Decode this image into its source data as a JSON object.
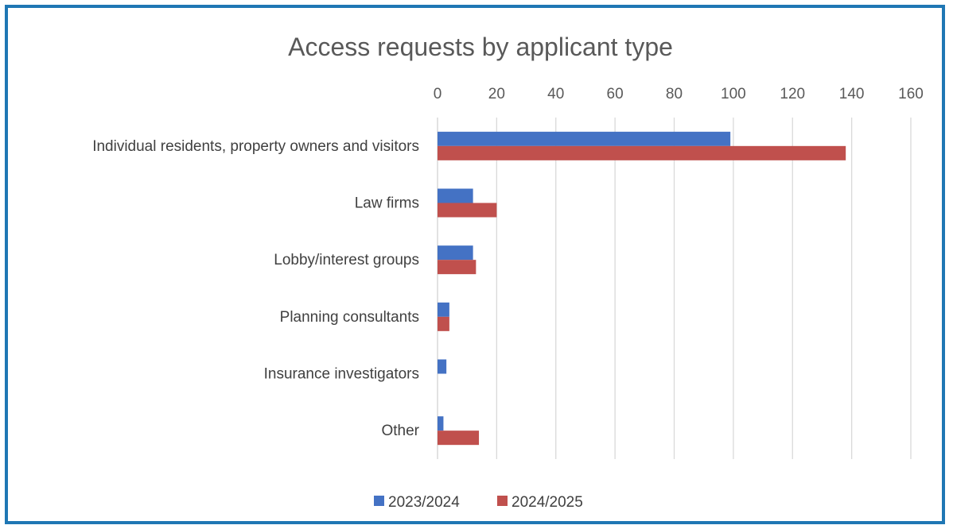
{
  "colors": {
    "series_2023": "#4472c4",
    "series_2024": "#c0504d",
    "grid": "#d9d9d9",
    "frame": "#1f77b4"
  },
  "chart_data": {
    "type": "bar",
    "orientation": "horizontal",
    "title": "Access requests by applicant type",
    "categories": [
      "Individual residents, property owners and visitors",
      "Law firms",
      "Lobby/interest groups",
      "Planning consultants",
      "Insurance investigators",
      "Other"
    ],
    "series": [
      {
        "name": "2023/2024",
        "color": "#4472c4",
        "values": [
          99,
          12,
          12,
          4,
          3,
          2
        ]
      },
      {
        "name": "2024/2025",
        "color": "#c0504d",
        "values": [
          138,
          20,
          13,
          4,
          0,
          14
        ]
      }
    ],
    "xlim": [
      0,
      160
    ],
    "xticks": [
      0,
      20,
      40,
      60,
      80,
      100,
      120,
      140,
      160
    ],
    "x_axis_position": "top",
    "grid": true,
    "legend_position": "bottom"
  }
}
